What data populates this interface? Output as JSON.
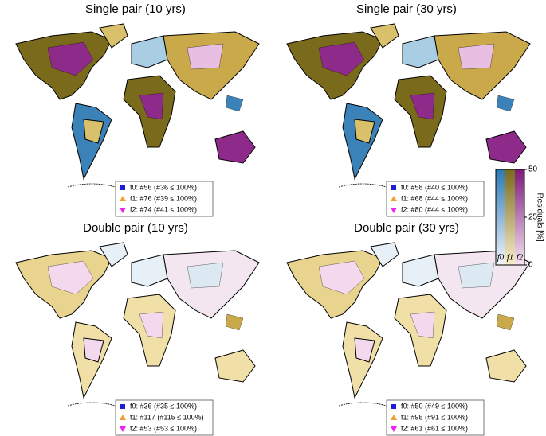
{
  "panels": [
    {
      "title": "Single pair (10 yrs)",
      "legend": [
        "f0: #56 (#36 ≤ 100%)",
        "f1: #76 (#39 ≤ 100%)",
        "f2: #74 (#41 ≤ 100%)"
      ]
    },
    {
      "title": "Single pair (30 yrs)",
      "legend": [
        "f0: #58 (#40 ≤ 100%)",
        "f1: #68 (#44 ≤ 100%)",
        "f2: #80 (#44 ≤ 100%)"
      ]
    },
    {
      "title": "Double pair (10 yrs)",
      "legend": [
        "f0: #36 (#35 ≤ 100%)",
        "f1: #117 (#115 ≤ 100%)",
        "f2: #53 (#53 ≤ 100%)"
      ]
    },
    {
      "title": "Double pair (30 yrs)",
      "legend": [
        "f0: #50 (#49 ≤ 100%)",
        "f1: #95 (#91 ≤ 100%)",
        "f2: #61 (#61 ≤ 100%)"
      ]
    }
  ],
  "colorbar": {
    "label": "Residuals [%]",
    "ticks": [
      0,
      25,
      50
    ],
    "range": [
      0,
      50
    ],
    "columns": [
      "f0",
      "f1",
      "f2"
    ]
  }
}
